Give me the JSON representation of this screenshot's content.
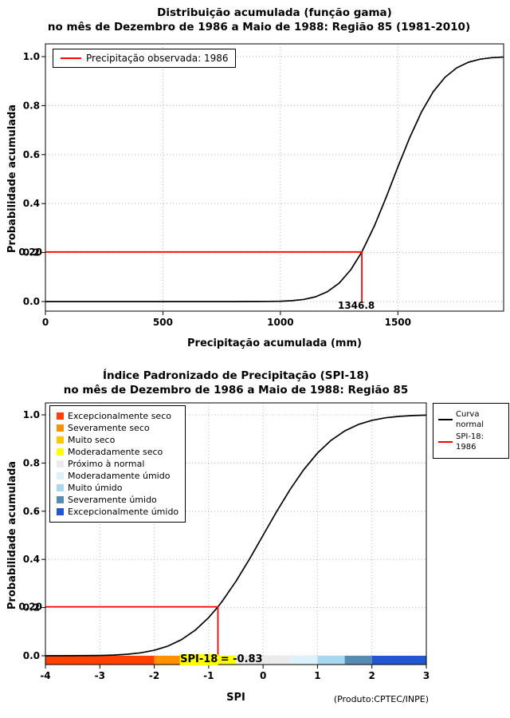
{
  "page": {
    "background": "#ffffff"
  },
  "chart_data": [
    {
      "type": "line",
      "title": "Distribuição acumulada (função gama)",
      "subtitle": "no mês de Dezembro de 1986 a Maio de 1988: Região 85 (1981-2010)",
      "xlabel": "Precipitação acumulada (mm)",
      "ylabel": "Probabilidade acumulada",
      "xlim": [
        0,
        1950
      ],
      "ylim": [
        0,
        1
      ],
      "xticks": [
        0,
        500,
        1000,
        1500
      ],
      "xtick_labels": [
        "0",
        "500",
        "1000",
        "1500"
      ],
      "yticks": [
        0,
        0.2,
        0.4,
        0.6,
        0.8,
        1
      ],
      "ytick_labels": [
        "0.0",
        "0.2",
        "0.4",
        "0.6",
        "0.8",
        "1.0"
      ],
      "grid": true,
      "series": [
        {
          "name": "Distribuição gama acumulada",
          "color": "#000000",
          "points": [
            [
              0,
              0
            ],
            [
              150,
              0
            ],
            [
              300,
              0
            ],
            [
              450,
              0
            ],
            [
              600,
              0
            ],
            [
              700,
              0
            ],
            [
              800,
              0.0001
            ],
            [
              850,
              0.0002
            ],
            [
              900,
              0.0004
            ],
            [
              950,
              0.0008
            ],
            [
              1000,
              0.0013
            ],
            [
              1050,
              0.0036
            ],
            [
              1100,
              0.0088
            ],
            [
              1150,
              0.0196
            ],
            [
              1200,
              0.0401
            ],
            [
              1250,
              0.0753
            ],
            [
              1300,
              0.1303
            ],
            [
              1346.8,
              0.2026
            ],
            [
              1400,
              0.3085
            ],
            [
              1450,
              0.4256
            ],
            [
              1500,
              0.5497
            ],
            [
              1550,
              0.6691
            ],
            [
              1600,
              0.7734
            ],
            [
              1650,
              0.856
            ],
            [
              1700,
              0.9154
            ],
            [
              1750,
              0.9542
            ],
            [
              1800,
              0.9772
            ],
            [
              1850,
              0.9896
            ],
            [
              1900,
              0.9957
            ],
            [
              1950,
              0.9983
            ]
          ]
        }
      ],
      "annotation": {
        "x": 1346.8,
        "y": 0.2026,
        "color": "#ff0000",
        "y_label": "0.20",
        "x_label": "1346.8"
      },
      "legend_items": [
        {
          "label": "Precipitação observada: 1986",
          "color": "#ff0000",
          "sample": "line"
        }
      ]
    },
    {
      "type": "line",
      "title": "Índice Padronizado de Precipitação (SPI-18)",
      "subtitle": "no mês de Dezembro de 1986 a Maio de 1988: Região 85",
      "xlabel": "SPI",
      "ylabel": "Probabilidade acumulada",
      "note": "(Produto:CPTEC/INPE)",
      "xlim": [
        -4,
        3
      ],
      "ylim": [
        0,
        1
      ],
      "xticks": [
        -4,
        -3,
        -2,
        -1,
        0,
        1,
        2,
        3
      ],
      "xtick_labels": [
        "-4",
        "-3",
        "-2",
        "-1",
        "0",
        "1",
        "2",
        "3"
      ],
      "yticks": [
        0,
        0.2,
        0.4,
        0.6,
        0.8,
        1
      ],
      "ytick_labels": [
        "0.0",
        "0.2",
        "0.4",
        "0.6",
        "0.8",
        "1.0"
      ],
      "grid": true,
      "series": [
        {
          "name": "Curva normal",
          "color": "#000000",
          "points": [
            [
              -4,
              3e-05
            ],
            [
              -3.5,
              0.00023
            ],
            [
              -3,
              0.00135
            ],
            [
              -2.75,
              0.003
            ],
            [
              -2.5,
              0.0062
            ],
            [
              -2.25,
              0.0122
            ],
            [
              -2,
              0.0228
            ],
            [
              -1.75,
              0.0401
            ],
            [
              -1.5,
              0.0668
            ],
            [
              -1.25,
              0.1056
            ],
            [
              -1,
              0.1587
            ],
            [
              -0.83,
              0.2033
            ],
            [
              -0.75,
              0.2266
            ],
            [
              -0.5,
              0.3085
            ],
            [
              -0.25,
              0.4013
            ],
            [
              0,
              0.5
            ],
            [
              0.25,
              0.5987
            ],
            [
              0.5,
              0.6915
            ],
            [
              0.75,
              0.7734
            ],
            [
              1,
              0.8413
            ],
            [
              1.25,
              0.8944
            ],
            [
              1.5,
              0.9332
            ],
            [
              1.75,
              0.9599
            ],
            [
              2,
              0.9772
            ],
            [
              2.25,
              0.9878
            ],
            [
              2.5,
              0.9938
            ],
            [
              2.75,
              0.997
            ],
            [
              3,
              0.9987
            ]
          ]
        }
      ],
      "annotation": {
        "x": -0.83,
        "y": 0.2033,
        "color": "#ff0000",
        "y_label": "0.20",
        "label_highlight": "SPI-18",
        "label_rest": " = -0.83",
        "highlight_color": "#ffff00",
        "label_x": -1.5,
        "drop_to": "bar"
      },
      "category_bar": {
        "breaks": [
          -4,
          -2,
          -1.5,
          -1,
          -0.5,
          0.5,
          1,
          1.5,
          2,
          3
        ],
        "colors": [
          "#ff4000",
          "#ff9100",
          "#ffc800",
          "#ffff00",
          "#ebebeb",
          "#dcf1fa",
          "#a6d9f0",
          "#568bb4",
          "#2257d1"
        ]
      },
      "legends": {
        "categories": [
          {
            "label": "Excepcionalmente seco",
            "color": "#ff4000",
            "sample": "swatch"
          },
          {
            "label": "Severamente seco",
            "color": "#ff9100",
            "sample": "swatch"
          },
          {
            "label": "Muito seco",
            "color": "#ffc800",
            "sample": "swatch"
          },
          {
            "label": "Moderadamente seco",
            "color": "#ffff00",
            "sample": "swatch"
          },
          {
            "label": "Próximo à normal",
            "color": "#ebebeb",
            "sample": "swatch"
          },
          {
            "label": "Moderadamente úmido",
            "color": "#dcf1fa",
            "sample": "swatch"
          },
          {
            "label": "Muito úmido",
            "color": "#a6d9f0",
            "sample": "swatch"
          },
          {
            "label": "Severamente úmido",
            "color": "#568bb4",
            "sample": "swatch"
          },
          {
            "label": "Excepcionalmente úmido",
            "color": "#2257d1",
            "sample": "swatch"
          }
        ],
        "curves": [
          {
            "label": "Curva\nnormal",
            "color": "#000000",
            "sample": "line"
          },
          {
            "label": "SPI-18: 1986",
            "color": "#ff0000",
            "sample": "line"
          }
        ]
      }
    }
  ]
}
